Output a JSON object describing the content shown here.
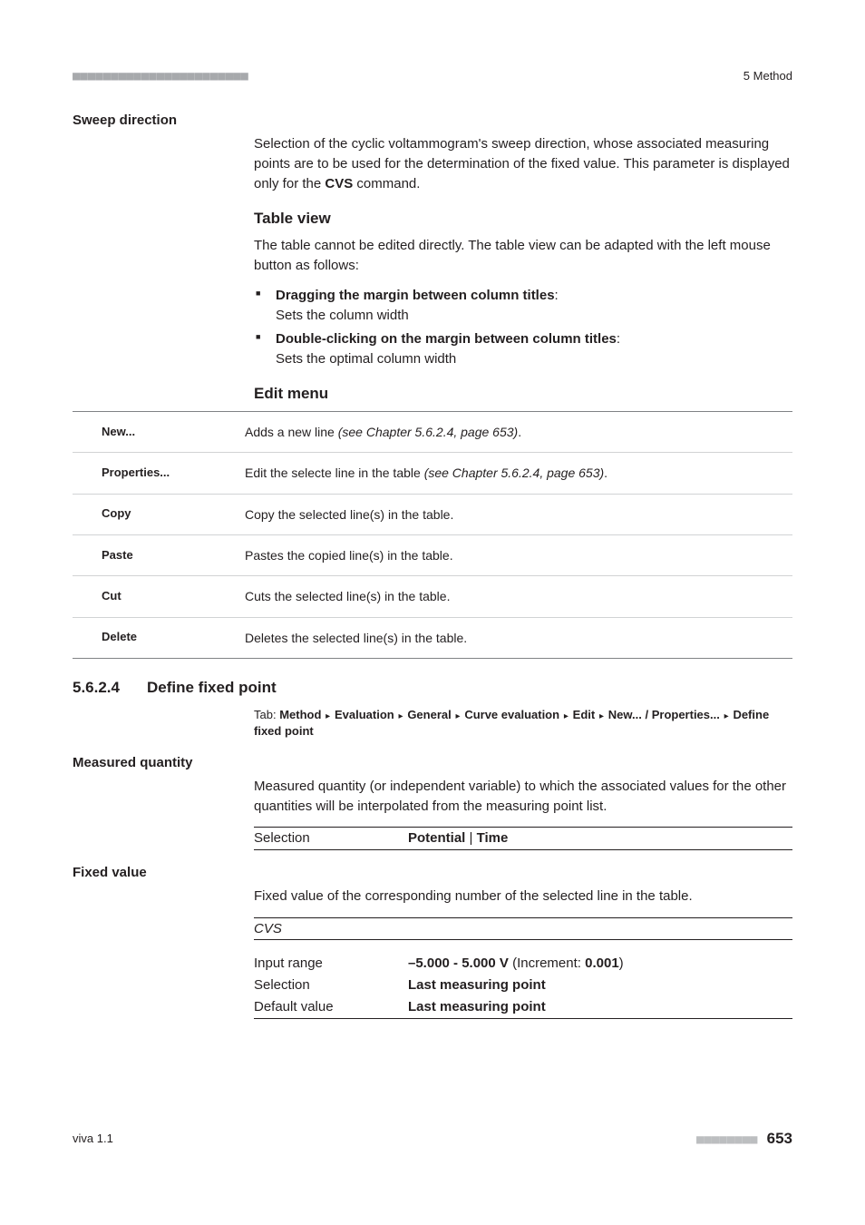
{
  "top": {
    "ticks": "■■■■■■■■■■■■■■■■■■■■■■■",
    "chapter": "5 Method"
  },
  "sweep": {
    "heading": "Sweep direction",
    "p1a": "Selection of the cyclic voltammogram's sweep direction, whose associated measuring points are to be used for the determination of the fixed value. This parameter is displayed only for the ",
    "p1b": "CVS",
    "p1c": " command."
  },
  "tableview": {
    "heading": "Table view",
    "p1": "The table cannot be edited directly. The table view can be adapted with the left mouse button as follows:",
    "b1t": "Dragging the margin between column titles",
    "b1d": "Sets the column width",
    "b2t": "Double-clicking on the margin between column titles",
    "b2d": "Sets the optimal column width"
  },
  "editmenu": {
    "heading": "Edit menu",
    "rows": [
      {
        "k": "New...",
        "v1": "Adds a new line ",
        "v2": "(see Chapter 5.6.2.4, page 653)",
        "v3": "."
      },
      {
        "k": "Properties...",
        "v1": "Edit the selecte line in the table ",
        "v2": "(see Chapter 5.6.2.4, page 653)",
        "v3": "."
      },
      {
        "k": "Copy",
        "v1": "Copy the selected line(s) in the table.",
        "v2": "",
        "v3": ""
      },
      {
        "k": "Paste",
        "v1": "Pastes the copied line(s) in the table.",
        "v2": "",
        "v3": ""
      },
      {
        "k": "Cut",
        "v1": "Cuts the selected line(s) in the table.",
        "v2": "",
        "v3": ""
      },
      {
        "k": "Delete",
        "v1": "Deletes the selected line(s) in the table.",
        "v2": "",
        "v3": ""
      }
    ]
  },
  "sec": {
    "num": "5.6.2.4",
    "title": "Define fixed point",
    "tab_label": "Tab: ",
    "tab_path": [
      "Method",
      "Evaluation",
      "General",
      "Curve evaluation",
      "Edit",
      "New... / Properties...",
      "Define fixed point"
    ]
  },
  "mq": {
    "heading": "Measured quantity",
    "p1": "Measured quantity (or independent variable) to which the associated values for the other quantities will be interpolated from the measuring point list.",
    "sel_k": "Selection",
    "sel_v1": "Potential",
    "sel_sep": " | ",
    "sel_v2": "Time"
  },
  "fv": {
    "heading": "Fixed value",
    "p1": "Fixed value of the corresponding number of the selected line in the table.",
    "cvs": "CVS",
    "r1k": "Input range",
    "r1a": "–5.000 - 5.000 V",
    "r1b": " (Increment: ",
    "r1c": "0.001",
    "r1d": ")",
    "r2k": "Selection",
    "r2v": "Last measuring point",
    "r3k": "Default value",
    "r3v": "Last measuring point"
  },
  "footer": {
    "ver": "viva 1.1",
    "dots": "■■■■■■■■",
    "page": "653"
  }
}
